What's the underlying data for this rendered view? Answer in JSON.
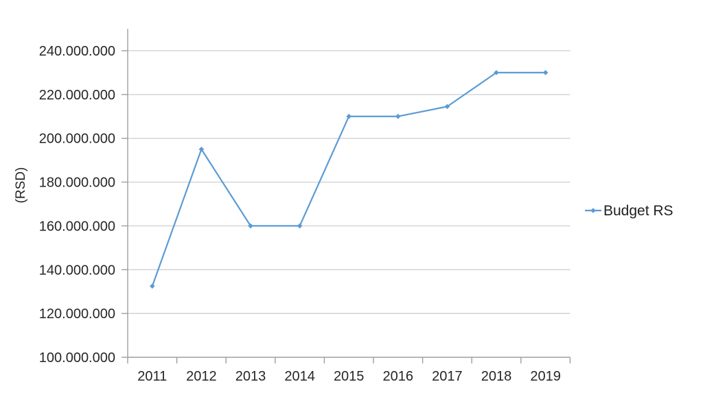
{
  "chart_data": {
    "type": "line",
    "title": "",
    "xlabel": "",
    "ylabel": "(RSD)",
    "categories": [
      "2011",
      "2012",
      "2013",
      "2014",
      "2015",
      "2016",
      "2017",
      "2018",
      "2019"
    ],
    "series": [
      {
        "name": "Budget RS",
        "values": [
          132500000,
          195000000,
          160000000,
          160000000,
          210000000,
          210000000,
          214500000,
          230000000,
          230000000
        ]
      }
    ],
    "ylim": [
      100000000,
      250000000
    ],
    "ytick_step": 20000000,
    "ytick_labels": [
      "100.000.000",
      "120.000.000",
      "140.000.000",
      "160.000.000",
      "180.000.000",
      "200.000.000",
      "220.000.000",
      "240.000.000"
    ],
    "grid": true,
    "legend_position": "right",
    "marker": "diamond"
  },
  "colors": {
    "series": "#5B9BD5",
    "gridline": "#D2D2D2",
    "axis": "#9E9E9E",
    "tick_text": "#262626",
    "legend_text": "#1F1F1F"
  }
}
